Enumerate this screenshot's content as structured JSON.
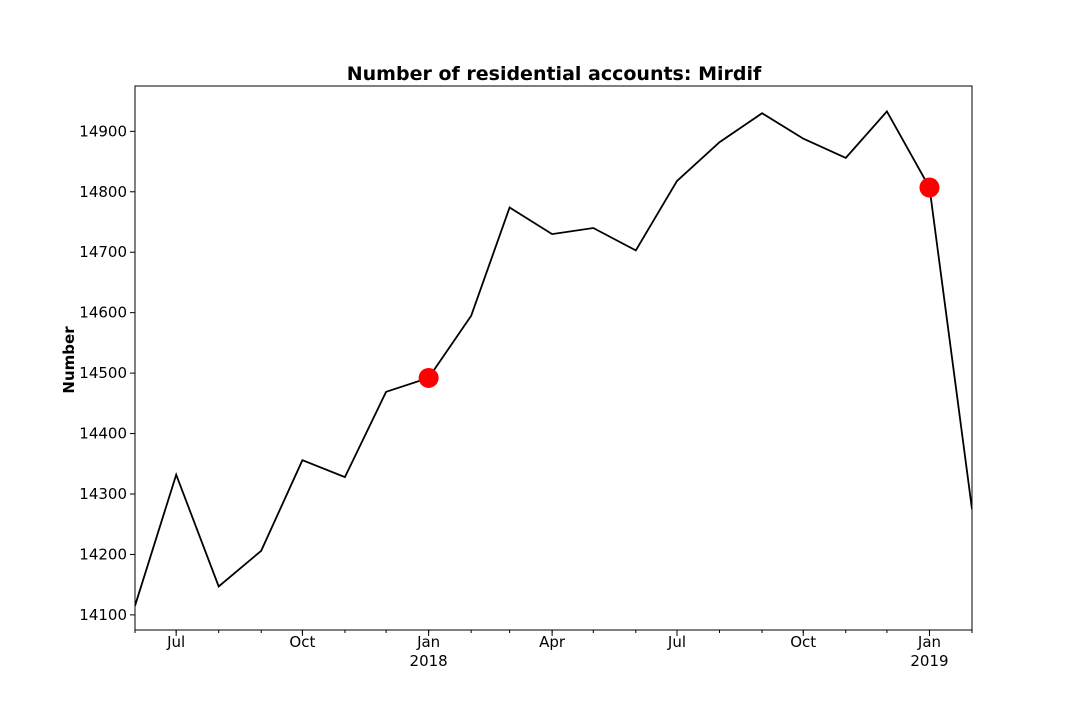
{
  "chart_data": {
    "type": "line",
    "title": "Number of residential accounts: Mirdif",
    "xlabel": "",
    "ylabel": "Number",
    "ylim": [
      14075,
      14975
    ],
    "xlim": [
      "2017-06-01",
      "2019-02-01"
    ],
    "grid": false,
    "line_color": "#000000",
    "highlight_color": "#ff0000",
    "y_ticks": [
      14100,
      14200,
      14300,
      14400,
      14500,
      14600,
      14700,
      14800,
      14900
    ],
    "x_ticks": [
      {
        "date": "2017-07-01",
        "label": "Jul",
        "year": ""
      },
      {
        "date": "2017-10-01",
        "label": "Oct",
        "year": ""
      },
      {
        "date": "2018-01-01",
        "label": "Jan",
        "year": "2018"
      },
      {
        "date": "2018-04-01",
        "label": "Apr",
        "year": ""
      },
      {
        "date": "2018-07-01",
        "label": "Jul",
        "year": ""
      },
      {
        "date": "2018-10-01",
        "label": "Oct",
        "year": ""
      },
      {
        "date": "2019-01-01",
        "label": "Jan",
        "year": "2019"
      }
    ],
    "x": [
      "2017-06-01",
      "2017-07-01",
      "2017-08-01",
      "2017-09-01",
      "2017-10-01",
      "2017-11-01",
      "2017-12-01",
      "2018-01-01",
      "2018-02-01",
      "2018-03-01",
      "2018-04-01",
      "2018-05-01",
      "2018-06-01",
      "2018-07-01",
      "2018-08-01",
      "2018-09-01",
      "2018-10-01",
      "2018-11-01",
      "2018-12-01",
      "2019-01-01",
      "2019-02-01"
    ],
    "series": [
      {
        "values": [
          14115,
          14332,
          14147,
          14206,
          14356,
          14328,
          14469,
          14492,
          14595,
          14774,
          14730,
          14740,
          14703,
          14818,
          14882,
          14930,
          14888,
          14856,
          14933,
          14807,
          14275
        ]
      }
    ],
    "highlights": [
      {
        "date": "2018-01-01",
        "value": 14492
      },
      {
        "date": "2019-01-01",
        "value": 14807
      }
    ]
  }
}
